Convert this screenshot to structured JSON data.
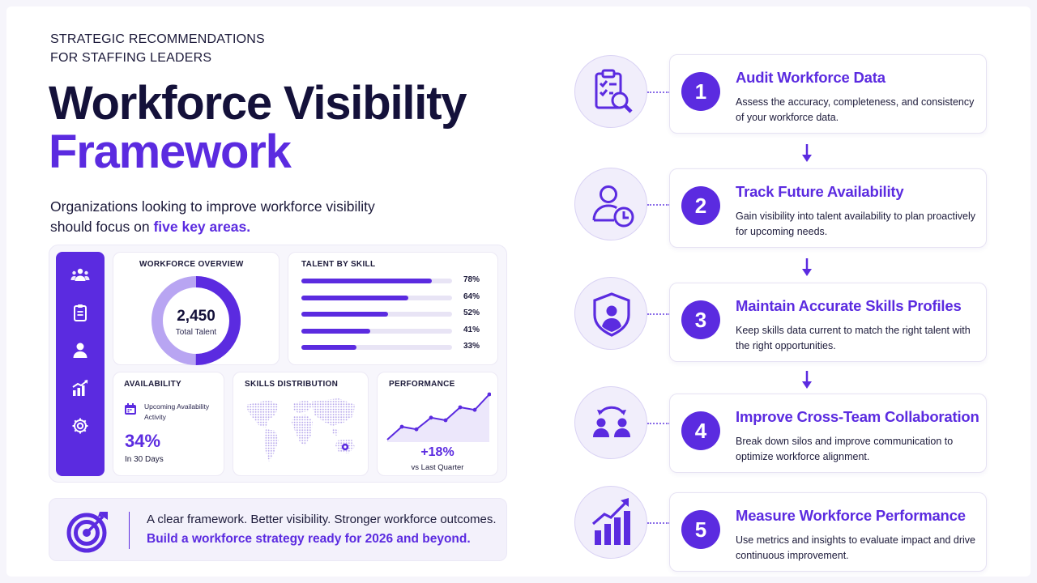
{
  "header": {
    "eyebrow_line1": "STRATEGIC RECOMMENDATIONS",
    "eyebrow_line2": "FOR STAFFING LEADERS",
    "title_line1": "Workforce Visibility",
    "title_line2": "Framework",
    "intro_text": "Organizations looking to improve workforce visibility should focus on ",
    "intro_emphasis": "five key areas."
  },
  "dashboard": {
    "sidebar_icons": [
      "people-icon",
      "clipboard-icon",
      "user-icon",
      "growth-chart-icon",
      "gear-icon"
    ],
    "overview": {
      "title": "WORKFORCE OVERVIEW",
      "total": "2,450",
      "total_label": "Total Talent",
      "fill_fraction": 0.5
    },
    "talent_by_skill": {
      "title": "TALENT BY SKILL",
      "items": [
        {
          "label": "78%",
          "value": 78
        },
        {
          "label": "64%",
          "value": 64
        },
        {
          "label": "52%",
          "value": 52
        },
        {
          "label": "41%",
          "value": 41
        },
        {
          "label": "33%",
          "value": 33
        }
      ]
    },
    "availability": {
      "title": "AVAILABILITY",
      "label": "Upcoming Availability Activity",
      "value": "34%",
      "period": "In 30 Days"
    },
    "skills_distribution": {
      "title": "SKILLS DISTRIBUTION"
    },
    "performance": {
      "title": "PERFORMANCE",
      "value": "+18%",
      "sub": "vs Last Quarter",
      "trend": [
        1,
        3,
        2.6,
        4.4,
        4,
        6,
        5.6,
        8
      ]
    }
  },
  "banner": {
    "line1": "A clear framework. Better visibility. Stronger workforce outcomes.",
    "line2": "Build a workforce strategy ready for 2026 and beyond."
  },
  "steps": [
    {
      "number": "1",
      "icon": "checklist-search-icon",
      "title": "Audit Workforce Data",
      "desc": "Assess the accuracy, completeness, and consistency of your workforce data."
    },
    {
      "number": "2",
      "icon": "user-clock-icon",
      "title": "Track Future Availability",
      "desc": "Gain visibility into talent availability to plan proactively for upcoming needs."
    },
    {
      "number": "3",
      "icon": "user-shield-icon",
      "title": "Maintain Accurate Skills Profiles",
      "desc": "Keep skills data current to match the right talent with the right opportunities."
    },
    {
      "number": "4",
      "icon": "team-exchange-icon",
      "title": "Improve Cross-Team Collaboration",
      "desc": "Break down silos and improve communication to optimize workforce alignment."
    },
    {
      "number": "5",
      "icon": "growth-bars-icon",
      "title": "Measure Workforce Performance",
      "desc": "Use metrics and insights to evaluate impact and drive continuous improvement."
    }
  ],
  "colors": {
    "accent": "#5b2be0",
    "accent_light": "#efeafd",
    "navy": "#14113a"
  }
}
